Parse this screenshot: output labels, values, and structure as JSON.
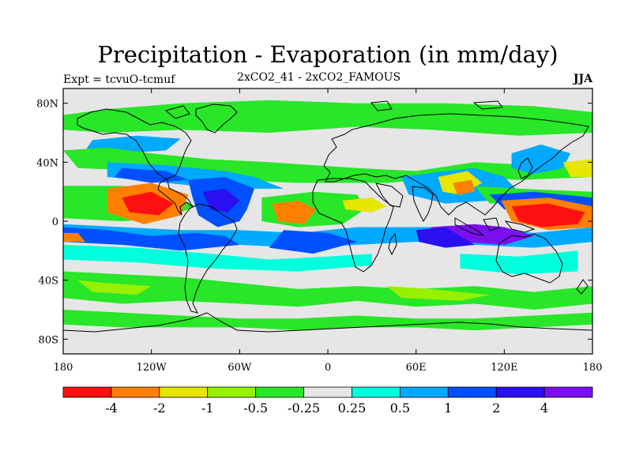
{
  "title": "Precipitation - Evaporation (in mm/day)",
  "experiment": "Expt = tcvuO-tcmuf",
  "comparison": "2xCO2_41 - 2xCO2_FAMOUS",
  "season": "JJA",
  "map": {
    "projection": "cylindrical equidistant",
    "lon_range": [
      -180,
      180
    ],
    "lat_range": [
      -90,
      90
    ],
    "lat_ticks": [
      {
        "value": 80,
        "label": "80N"
      },
      {
        "value": 40,
        "label": "40N"
      },
      {
        "value": 0,
        "label": "0"
      },
      {
        "value": -40,
        "label": "40S"
      },
      {
        "value": -80,
        "label": "80S"
      }
    ],
    "lon_ticks": [
      {
        "value": -180,
        "label": "180"
      },
      {
        "value": -120,
        "label": "120W"
      },
      {
        "value": -60,
        "label": "60W"
      },
      {
        "value": 0,
        "label": "0"
      },
      {
        "value": 60,
        "label": "60E"
      },
      {
        "value": 120,
        "label": "120E"
      },
      {
        "value": 180,
        "label": "180"
      }
    ]
  },
  "colorbar": {
    "colors": [
      "#ff1010",
      "#ff8000",
      "#e6e600",
      "#96f000",
      "#28e628",
      "#e6e6e6",
      "#00ffdc",
      "#00aaff",
      "#0050ff",
      "#2a10f0",
      "#7a10f0"
    ],
    "labels": [
      "-4",
      "-2",
      "-1",
      "-0.5",
      "-0.25",
      "0.25",
      "0.5",
      "1",
      "2",
      "4"
    ]
  },
  "fields": {
    "background_color": "#e6e6e6",
    "regions": [
      {
        "color": "#28e628",
        "points": [
          [
            -180,
            72
          ],
          [
            -150,
            76
          ],
          [
            -100,
            80
          ],
          [
            -40,
            82
          ],
          [
            20,
            80
          ],
          [
            80,
            80
          ],
          [
            140,
            78
          ],
          [
            180,
            74
          ],
          [
            180,
            60
          ],
          [
            130,
            58
          ],
          [
            70,
            62
          ],
          [
            20,
            64
          ],
          [
            -40,
            60
          ],
          [
            -100,
            62
          ],
          [
            -150,
            60
          ],
          [
            -180,
            62
          ]
        ]
      },
      {
        "color": "#00aaff",
        "points": [
          [
            -160,
            55
          ],
          [
            -130,
            58
          ],
          [
            -100,
            56
          ],
          [
            -110,
            48
          ],
          [
            -140,
            46
          ],
          [
            -165,
            48
          ]
        ]
      },
      {
        "color": "#28e628",
        "points": [
          [
            -180,
            48
          ],
          [
            -150,
            50
          ],
          [
            -120,
            46
          ],
          [
            -80,
            42
          ],
          [
            -40,
            40
          ],
          [
            20,
            36
          ],
          [
            60,
            34
          ],
          [
            100,
            40
          ],
          [
            140,
            38
          ],
          [
            180,
            36
          ],
          [
            180,
            30
          ],
          [
            130,
            28
          ],
          [
            90,
            30
          ],
          [
            40,
            26
          ],
          [
            -20,
            26
          ],
          [
            -70,
            28
          ],
          [
            -120,
            34
          ],
          [
            -170,
            36
          ]
        ]
      },
      {
        "color": "#00aaff",
        "points": [
          [
            -150,
            40
          ],
          [
            -110,
            38
          ],
          [
            -70,
            34
          ],
          [
            -50,
            30
          ],
          [
            -30,
            22
          ],
          [
            -70,
            22
          ],
          [
            -110,
            26
          ],
          [
            -150,
            30
          ]
        ]
      },
      {
        "color": "#0050ff",
        "points": [
          [
            -140,
            36
          ],
          [
            -110,
            34
          ],
          [
            -95,
            28
          ],
          [
            -120,
            26
          ],
          [
            -145,
            30
          ]
        ]
      },
      {
        "color": "#28e628",
        "points": [
          [
            -180,
            24
          ],
          [
            -140,
            24
          ],
          [
            -110,
            20
          ],
          [
            -90,
            10
          ],
          [
            -110,
            2
          ],
          [
            -140,
            0
          ],
          [
            -180,
            2
          ]
        ]
      },
      {
        "color": "#ff8000",
        "points": [
          [
            -150,
            22
          ],
          [
            -120,
            26
          ],
          [
            -95,
            18
          ],
          [
            -100,
            4
          ],
          [
            -125,
            -2
          ],
          [
            -150,
            6
          ]
        ]
      },
      {
        "color": "#ff1010",
        "points": [
          [
            -140,
            16
          ],
          [
            -120,
            20
          ],
          [
            -105,
            12
          ],
          [
            -115,
            4
          ],
          [
            -135,
            6
          ]
        ]
      },
      {
        "color": "#0050ff",
        "points": [
          [
            -95,
            28
          ],
          [
            -70,
            30
          ],
          [
            -50,
            22
          ],
          [
            -55,
            8
          ],
          [
            -60,
            0
          ],
          [
            -75,
            -4
          ],
          [
            -88,
            4
          ],
          [
            -92,
            16
          ]
        ]
      },
      {
        "color": "#2a10f0",
        "points": [
          [
            -85,
            20
          ],
          [
            -70,
            22
          ],
          [
            -60,
            14
          ],
          [
            -68,
            6
          ],
          [
            -80,
            8
          ]
        ]
      },
      {
        "color": "#28e628",
        "points": [
          [
            -45,
            16
          ],
          [
            -10,
            20
          ],
          [
            20,
            18
          ],
          [
            25,
            8
          ],
          [
            10,
            -2
          ],
          [
            -20,
            -4
          ],
          [
            -45,
            0
          ]
        ]
      },
      {
        "color": "#ff8000",
        "points": [
          [
            -38,
            12
          ],
          [
            -20,
            14
          ],
          [
            -8,
            8
          ],
          [
            -16,
            -2
          ],
          [
            -34,
            0
          ]
        ]
      },
      {
        "color": "#e6e600",
        "points": [
          [
            10,
            14
          ],
          [
            30,
            16
          ],
          [
            40,
            10
          ],
          [
            30,
            6
          ],
          [
            12,
            8
          ]
        ]
      },
      {
        "color": "#00aaff",
        "points": [
          [
            -180,
            -2
          ],
          [
            -140,
            -4
          ],
          [
            -100,
            -6
          ],
          [
            -60,
            -6
          ],
          [
            -20,
            -8
          ],
          [
            20,
            -4
          ],
          [
            60,
            -4
          ],
          [
            100,
            -4
          ],
          [
            140,
            -8
          ],
          [
            180,
            -4
          ],
          [
            180,
            -14
          ],
          [
            140,
            -18
          ],
          [
            100,
            -16
          ],
          [
            60,
            -14
          ],
          [
            20,
            -16
          ],
          [
            -20,
            -18
          ],
          [
            -60,
            -16
          ],
          [
            -100,
            -18
          ],
          [
            -140,
            -16
          ],
          [
            -180,
            -14
          ]
        ]
      },
      {
        "color": "#0050ff",
        "points": [
          [
            -180,
            -4
          ],
          [
            -150,
            -6
          ],
          [
            -120,
            -10
          ],
          [
            -90,
            -8
          ],
          [
            -70,
            -10
          ],
          [
            -60,
            -16
          ],
          [
            -100,
            -20
          ],
          [
            -140,
            -16
          ],
          [
            -180,
            -14
          ]
        ]
      },
      {
        "color": "#0050ff",
        "points": [
          [
            -30,
            -6
          ],
          [
            0,
            -8
          ],
          [
            20,
            -14
          ],
          [
            -10,
            -22
          ],
          [
            -40,
            -18
          ]
        ]
      },
      {
        "color": "#00ffdc",
        "points": [
          [
            -180,
            -16
          ],
          [
            -130,
            -18
          ],
          [
            -80,
            -22
          ],
          [
            -40,
            -26
          ],
          [
            0,
            -24
          ],
          [
            30,
            -22
          ],
          [
            30,
            -30
          ],
          [
            -20,
            -34
          ],
          [
            -80,
            -32
          ],
          [
            -130,
            -28
          ],
          [
            -180,
            -26
          ]
        ]
      },
      {
        "color": "#00ffdc",
        "points": [
          [
            90,
            -22
          ],
          [
            130,
            -24
          ],
          [
            170,
            -20
          ],
          [
            170,
            -34
          ],
          [
            130,
            -36
          ],
          [
            90,
            -32
          ]
        ]
      },
      {
        "color": "#28e628",
        "points": [
          [
            -180,
            -34
          ],
          [
            -140,
            -36
          ],
          [
            -100,
            -38
          ],
          [
            -60,
            -42
          ],
          [
            -20,
            -46
          ],
          [
            20,
            -44
          ],
          [
            60,
            -46
          ],
          [
            100,
            -44
          ],
          [
            140,
            -48
          ],
          [
            180,
            -44
          ],
          [
            180,
            -56
          ],
          [
            140,
            -60
          ],
          [
            100,
            -56
          ],
          [
            60,
            -58
          ],
          [
            20,
            -54
          ],
          [
            -20,
            -58
          ],
          [
            -60,
            -56
          ],
          [
            -100,
            -54
          ],
          [
            -140,
            -56
          ],
          [
            -180,
            -52
          ]
        ]
      },
      {
        "color": "#96f000",
        "points": [
          [
            -170,
            -40
          ],
          [
            -150,
            -42
          ],
          [
            -120,
            -44
          ],
          [
            -130,
            -50
          ],
          [
            -160,
            -48
          ]
        ]
      },
      {
        "color": "#96f000",
        "points": [
          [
            40,
            -44
          ],
          [
            70,
            -46
          ],
          [
            110,
            -50
          ],
          [
            90,
            -54
          ],
          [
            50,
            -52
          ]
        ]
      },
      {
        "color": "#28e628",
        "points": [
          [
            -180,
            -60
          ],
          [
            -140,
            -62
          ],
          [
            -100,
            -64
          ],
          [
            -60,
            -66
          ],
          [
            -20,
            -66
          ],
          [
            20,
            -64
          ],
          [
            60,
            -66
          ],
          [
            100,
            -66
          ],
          [
            140,
            -64
          ],
          [
            180,
            -62
          ],
          [
            180,
            -70
          ],
          [
            140,
            -72
          ],
          [
            100,
            -74
          ],
          [
            60,
            -72
          ],
          [
            20,
            -72
          ],
          [
            -20,
            -74
          ],
          [
            -60,
            -72
          ],
          [
            -100,
            -72
          ],
          [
            -140,
            -72
          ],
          [
            -180,
            -70
          ]
        ]
      },
      {
        "color": "#00aaff",
        "points": [
          [
            50,
            30
          ],
          [
            80,
            34
          ],
          [
            100,
            36
          ],
          [
            120,
            30
          ],
          [
            130,
            20
          ],
          [
            110,
            14
          ],
          [
            80,
            12
          ],
          [
            55,
            18
          ]
        ]
      },
      {
        "color": "#e6e600",
        "points": [
          [
            75,
            30
          ],
          [
            95,
            34
          ],
          [
            105,
            26
          ],
          [
            90,
            18
          ],
          [
            78,
            20
          ]
        ]
      },
      {
        "color": "#ff8000",
        "points": [
          [
            85,
            26
          ],
          [
            98,
            28
          ],
          [
            100,
            20
          ],
          [
            88,
            18
          ]
        ]
      },
      {
        "color": "#00aaff",
        "points": [
          [
            125,
            46
          ],
          [
            145,
            52
          ],
          [
            165,
            46
          ],
          [
            160,
            36
          ],
          [
            140,
            32
          ],
          [
            125,
            36
          ]
        ]
      },
      {
        "color": "#e6e600",
        "points": [
          [
            160,
            40
          ],
          [
            180,
            42
          ],
          [
            180,
            30
          ],
          [
            165,
            30
          ]
        ]
      },
      {
        "color": "#28e628",
        "points": [
          [
            100,
            24
          ],
          [
            130,
            22
          ],
          [
            180,
            20
          ],
          [
            180,
            12
          ],
          [
            140,
            14
          ],
          [
            110,
            12
          ]
        ]
      },
      {
        "color": "#0050ff",
        "points": [
          [
            110,
            18
          ],
          [
            140,
            20
          ],
          [
            180,
            16
          ],
          [
            180,
            8
          ],
          [
            150,
            6
          ],
          [
            120,
            8
          ]
        ]
      },
      {
        "color": "#ff8000",
        "points": [
          [
            118,
            14
          ],
          [
            150,
            16
          ],
          [
            180,
            10
          ],
          [
            180,
            -4
          ],
          [
            150,
            -6
          ],
          [
            125,
            0
          ]
        ]
      },
      {
        "color": "#ff1010",
        "points": [
          [
            125,
            10
          ],
          [
            150,
            12
          ],
          [
            175,
            6
          ],
          [
            170,
            -2
          ],
          [
            145,
            -4
          ],
          [
            130,
            0
          ]
        ]
      },
      {
        "color": "#7a10f0",
        "points": [
          [
            70,
            -4
          ],
          [
            100,
            -2
          ],
          [
            120,
            -4
          ],
          [
            140,
            -10
          ],
          [
            120,
            -16
          ],
          [
            90,
            -14
          ],
          [
            72,
            -10
          ]
        ]
      },
      {
        "color": "#2a10f0",
        "points": [
          [
            60,
            -6
          ],
          [
            80,
            -4
          ],
          [
            100,
            -16
          ],
          [
            80,
            -18
          ],
          [
            62,
            -14
          ]
        ]
      },
      {
        "color": "#ff8000",
        "points": [
          [
            -180,
            -8
          ],
          [
            -170,
            -8
          ],
          [
            -165,
            -14
          ],
          [
            -180,
            -14
          ]
        ]
      }
    ]
  }
}
